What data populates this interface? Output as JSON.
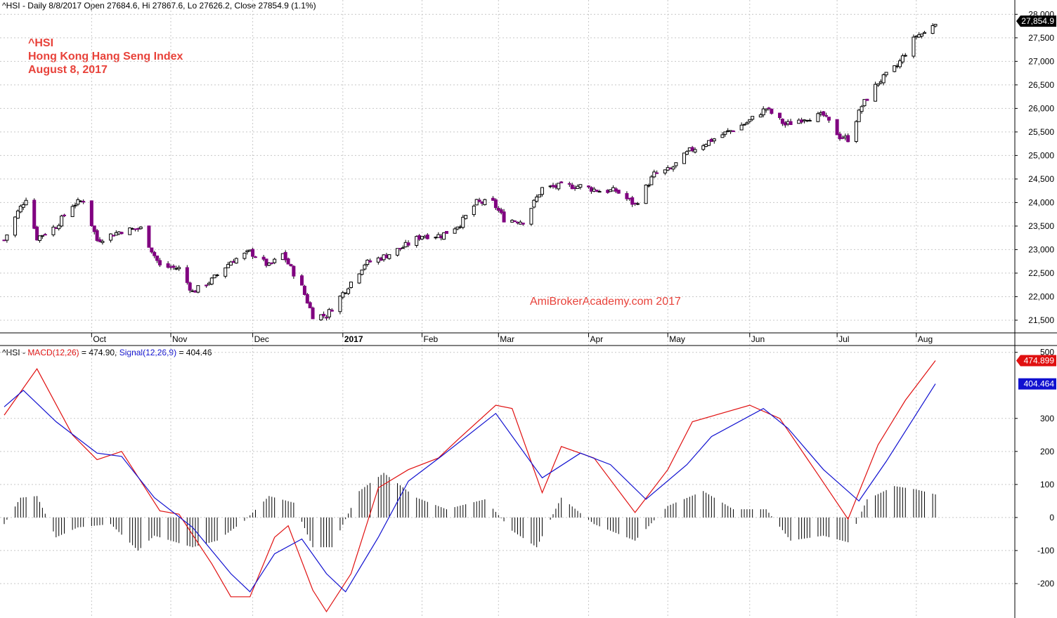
{
  "header": {
    "price_prefix": "^HSI - Daily 8/8/2017 Open 27684.6, Hi 27867.6, Lo 27626.2, Close 27854.9 (1.1%)",
    "macd_prefix": "^HSI - ",
    "macd_label": "MACD(12,26)",
    "macd_value_text": " = 474.90, ",
    "signal_label": "Signal(12,26,9)",
    "signal_value_text": " = 404.46"
  },
  "annotation": {
    "line1": "^HSI",
    "line2": "Hong Kong Hang Seng Index",
    "line3": "August 8, 2017"
  },
  "watermark": "AmiBrokerAcademy.com  2017",
  "price_badge": "27,854.9",
  "macd_badge": "474.899",
  "signal_badge": "404.464",
  "colors": {
    "up_candle": "#ffffff",
    "down_candle": "#800080",
    "macd": "#e01010",
    "signal": "#1010d0",
    "histogram": "#000000",
    "annotation": "#e8423a",
    "grid": "#c8c8c8"
  },
  "chart_data": [
    {
      "type": "candlestick",
      "y_ticks": [
        "21,500",
        "22,000",
        "22,500",
        "23,000",
        "23,500",
        "24,000",
        "24,500",
        "25,000",
        "25,500",
        "26,000",
        "26,500",
        "27,000",
        "27,500",
        "28,000"
      ],
      "ylim": [
        21350,
        28050
      ],
      "grid": true,
      "x_month_labels": [
        "Oct",
        "Nov",
        "Dec",
        "2017",
        "Feb",
        "Mar",
        "Apr",
        "May",
        "Jun",
        "Jul",
        "Aug"
      ],
      "close_path": [
        {
          "date": "2016-09-01",
          "close": 23200
        },
        {
          "date": "2016-09-06",
          "close": 23800
        },
        {
          "date": "2016-09-09",
          "close": 24100
        },
        {
          "date": "2016-09-13",
          "close": 23250
        },
        {
          "date": "2016-09-20",
          "close": 23500
        },
        {
          "date": "2016-09-26",
          "close": 23950
        },
        {
          "date": "2016-09-30",
          "close": 24050
        },
        {
          "date": "2016-10-05",
          "close": 23200
        },
        {
          "date": "2016-10-14",
          "close": 23400
        },
        {
          "date": "2016-10-21",
          "close": 23450
        },
        {
          "date": "2016-10-28",
          "close": 22650
        },
        {
          "date": "2016-11-04",
          "close": 22600
        },
        {
          "date": "2016-11-09",
          "close": 22100
        },
        {
          "date": "2016-11-16",
          "close": 22350
        },
        {
          "date": "2016-11-23",
          "close": 22750
        },
        {
          "date": "2016-11-30",
          "close": 22950
        },
        {
          "date": "2016-12-07",
          "close": 22650
        },
        {
          "date": "2016-12-12",
          "close": 22900
        },
        {
          "date": "2016-12-19",
          "close": 22200
        },
        {
          "date": "2016-12-23",
          "close": 21600
        },
        {
          "date": "2016-12-28",
          "close": 21600
        },
        {
          "date": "2017-01-04",
          "close": 22150
        },
        {
          "date": "2017-01-11",
          "close": 22700
        },
        {
          "date": "2017-01-18",
          "close": 22850
        },
        {
          "date": "2017-01-25",
          "close": 23050
        },
        {
          "date": "2017-02-01",
          "close": 23300
        },
        {
          "date": "2017-02-08",
          "close": 23300
        },
        {
          "date": "2017-02-15",
          "close": 23550
        },
        {
          "date": "2017-02-21",
          "close": 24000
        },
        {
          "date": "2017-02-27",
          "close": 24000
        },
        {
          "date": "2017-03-03",
          "close": 23650
        },
        {
          "date": "2017-03-10",
          "close": 23600
        },
        {
          "date": "2017-03-17",
          "close": 24300
        },
        {
          "date": "2017-03-24",
          "close": 24350
        },
        {
          "date": "2017-03-31",
          "close": 24350
        },
        {
          "date": "2017-04-07",
          "close": 24250
        },
        {
          "date": "2017-04-13",
          "close": 24250
        },
        {
          "date": "2017-04-20",
          "close": 23950
        },
        {
          "date": "2017-04-27",
          "close": 24600
        },
        {
          "date": "2017-05-03",
          "close": 24700
        },
        {
          "date": "2017-05-10",
          "close": 25100
        },
        {
          "date": "2017-05-17",
          "close": 25300
        },
        {
          "date": "2017-05-24",
          "close": 25500
        },
        {
          "date": "2017-05-31",
          "close": 25700
        },
        {
          "date": "2017-06-07",
          "close": 26000
        },
        {
          "date": "2017-06-14",
          "close": 25650
        },
        {
          "date": "2017-06-21",
          "close": 25800
        },
        {
          "date": "2017-06-28",
          "close": 25850
        },
        {
          "date": "2017-07-04",
          "close": 25400
        },
        {
          "date": "2017-07-07",
          "close": 25350
        },
        {
          "date": "2017-07-12",
          "close": 26050
        },
        {
          "date": "2017-07-18",
          "close": 26550
        },
        {
          "date": "2017-07-25",
          "close": 26900
        },
        {
          "date": "2017-08-01",
          "close": 27550
        },
        {
          "date": "2017-08-04",
          "close": 27600
        },
        {
          "date": "2017-08-08",
          "close": 27854.9
        }
      ]
    },
    {
      "type": "line",
      "y_ticks": [
        "500",
        "300",
        "200",
        "100",
        "0",
        "-100",
        "-200"
      ],
      "ylim": [
        -300,
        510
      ],
      "series": [
        {
          "name": "MACD(12,26)",
          "color": "#e01010",
          "points": [
            {
              "date": "2016-09-01",
              "value": 310
            },
            {
              "date": "2016-09-13",
              "value": 450
            },
            {
              "date": "2016-09-26",
              "value": 250
            },
            {
              "date": "2016-10-05",
              "value": 175
            },
            {
              "date": "2016-10-14",
              "value": 200
            },
            {
              "date": "2016-10-28",
              "value": 20
            },
            {
              "date": "2016-11-04",
              "value": 10
            },
            {
              "date": "2016-11-16",
              "value": -140
            },
            {
              "date": "2016-11-23",
              "value": -240
            },
            {
              "date": "2016-11-30",
              "value": -240
            },
            {
              "date": "2016-12-09",
              "value": -60
            },
            {
              "date": "2016-12-14",
              "value": -25
            },
            {
              "date": "2016-12-23",
              "value": -220
            },
            {
              "date": "2016-12-28",
              "value": -285
            },
            {
              "date": "2017-01-06",
              "value": -170
            },
            {
              "date": "2017-01-16",
              "value": 90
            },
            {
              "date": "2017-01-27",
              "value": 145
            },
            {
              "date": "2017-02-07",
              "value": 180
            },
            {
              "date": "2017-02-14",
              "value": 235
            },
            {
              "date": "2017-02-28",
              "value": 340
            },
            {
              "date": "2017-03-06",
              "value": 330
            },
            {
              "date": "2017-03-17",
              "value": 75
            },
            {
              "date": "2017-03-24",
              "value": 215
            },
            {
              "date": "2017-04-05",
              "value": 180
            },
            {
              "date": "2017-04-20",
              "value": 15
            },
            {
              "date": "2017-05-02",
              "value": 145
            },
            {
              "date": "2017-05-11",
              "value": 290
            },
            {
              "date": "2017-06-01",
              "value": 340
            },
            {
              "date": "2017-06-12",
              "value": 300
            },
            {
              "date": "2017-06-26",
              "value": 130
            },
            {
              "date": "2017-07-07",
              "value": -5
            },
            {
              "date": "2017-07-18",
              "value": 220
            },
            {
              "date": "2017-07-28",
              "value": 355
            },
            {
              "date": "2017-08-08",
              "value": 474.899
            }
          ]
        },
        {
          "name": "Signal(12,26,9)",
          "color": "#1010d0",
          "points": [
            {
              "date": "2016-09-01",
              "value": 335
            },
            {
              "date": "2016-09-08",
              "value": 385
            },
            {
              "date": "2016-09-20",
              "value": 290
            },
            {
              "date": "2016-10-05",
              "value": 195
            },
            {
              "date": "2016-10-14",
              "value": 185
            },
            {
              "date": "2016-10-26",
              "value": 60
            },
            {
              "date": "2016-11-09",
              "value": -30
            },
            {
              "date": "2016-11-23",
              "value": -170
            },
            {
              "date": "2016-11-30",
              "value": -225
            },
            {
              "date": "2016-12-09",
              "value": -110
            },
            {
              "date": "2016-12-19",
              "value": -65
            },
            {
              "date": "2016-12-28",
              "value": -170
            },
            {
              "date": "2017-01-04",
              "value": -225
            },
            {
              "date": "2017-01-16",
              "value": -60
            },
            {
              "date": "2017-01-27",
              "value": 110
            },
            {
              "date": "2017-02-08",
              "value": 185
            },
            {
              "date": "2017-02-28",
              "value": 315
            },
            {
              "date": "2017-03-17",
              "value": 120
            },
            {
              "date": "2017-03-31",
              "value": 195
            },
            {
              "date": "2017-04-11",
              "value": 160
            },
            {
              "date": "2017-04-24",
              "value": 55
            },
            {
              "date": "2017-05-09",
              "value": 160
            },
            {
              "date": "2017-05-18",
              "value": 245
            },
            {
              "date": "2017-06-06",
              "value": 330
            },
            {
              "date": "2017-06-15",
              "value": 270
            },
            {
              "date": "2017-06-28",
              "value": 145
            },
            {
              "date": "2017-07-11",
              "value": 50
            },
            {
              "date": "2017-07-21",
              "value": 170
            },
            {
              "date": "2017-08-08",
              "value": 404.464
            }
          ]
        },
        {
          "name": "MACD histogram",
          "color": "#000000",
          "points": [
            {
              "date": "2016-09-01",
              "value": -20
            },
            {
              "date": "2016-09-07",
              "value": 60
            },
            {
              "date": "2016-09-13",
              "value": 65
            },
            {
              "date": "2016-09-20",
              "value": -60
            },
            {
              "date": "2016-09-28",
              "value": -30
            },
            {
              "date": "2016-10-10",
              "value": -20
            },
            {
              "date": "2016-10-20",
              "value": -100
            },
            {
              "date": "2016-10-26",
              "value": -55
            },
            {
              "date": "2016-11-09",
              "value": -90
            },
            {
              "date": "2016-11-18",
              "value": -70
            },
            {
              "date": "2016-11-28",
              "value": -10
            },
            {
              "date": "2016-12-07",
              "value": 65
            },
            {
              "date": "2016-12-16",
              "value": 45
            },
            {
              "date": "2016-12-23",
              "value": -90
            },
            {
              "date": "2016-12-30",
              "value": -90
            },
            {
              "date": "2017-01-09",
              "value": 80
            },
            {
              "date": "2017-01-18",
              "value": 135
            },
            {
              "date": "2017-01-30",
              "value": 60
            },
            {
              "date": "2017-02-10",
              "value": 25
            },
            {
              "date": "2017-02-24",
              "value": 55
            },
            {
              "date": "2017-03-06",
              "value": -40
            },
            {
              "date": "2017-03-15",
              "value": -90
            },
            {
              "date": "2017-03-24",
              "value": 60
            },
            {
              "date": "2017-04-05",
              "value": -20
            },
            {
              "date": "2017-04-20",
              "value": -70
            },
            {
              "date": "2017-05-02",
              "value": 35
            },
            {
              "date": "2017-05-15",
              "value": 80
            },
            {
              "date": "2017-05-26",
              "value": 25
            },
            {
              "date": "2017-06-07",
              "value": 25
            },
            {
              "date": "2017-06-16",
              "value": -70
            },
            {
              "date": "2017-06-28",
              "value": -55
            },
            {
              "date": "2017-07-07",
              "value": -75
            },
            {
              "date": "2017-07-14",
              "value": 55
            },
            {
              "date": "2017-07-24",
              "value": 95
            },
            {
              "date": "2017-08-01",
              "value": 85
            },
            {
              "date": "2017-08-08",
              "value": 70
            }
          ]
        }
      ]
    }
  ]
}
